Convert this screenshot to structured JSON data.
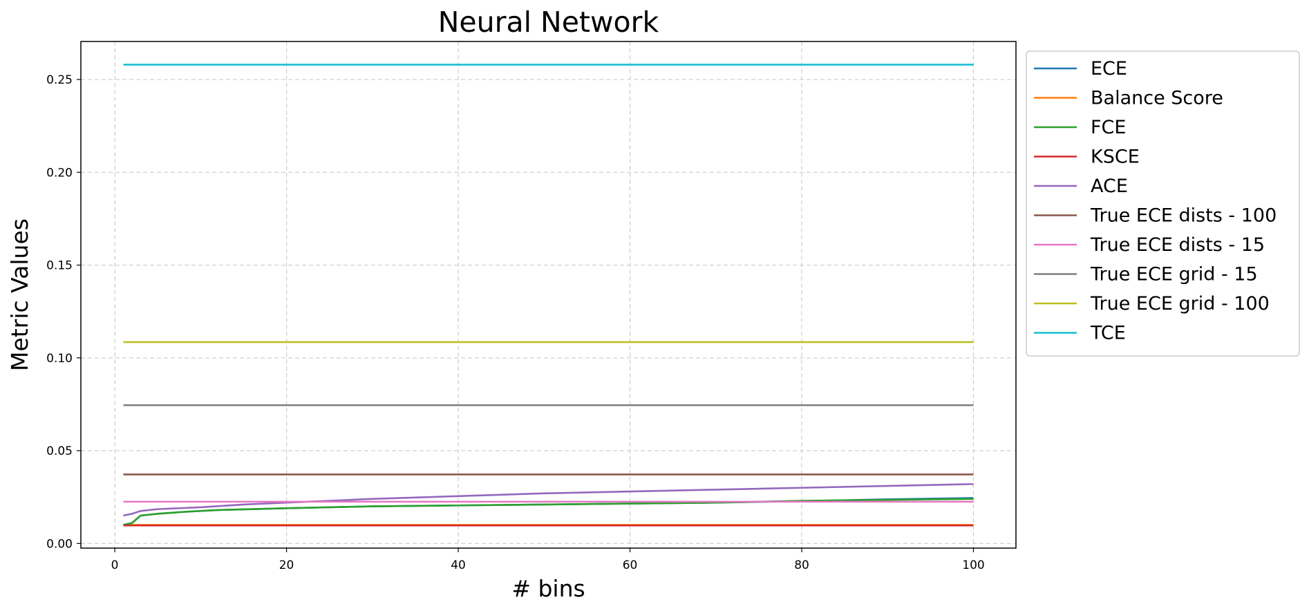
{
  "chart_data": {
    "type": "line",
    "title": "Neural Network",
    "xlabel": "# bins",
    "ylabel": "Metric Values",
    "xlim": [
      -3.95,
      104.95
    ],
    "ylim": [
      -0.0025,
      0.2705
    ],
    "xticks": [
      0,
      20,
      40,
      60,
      80,
      100
    ],
    "xtick_labels": [
      "0",
      "20",
      "40",
      "60",
      "80",
      "100"
    ],
    "yticks": [
      0.0,
      0.05,
      0.1,
      0.15,
      0.2,
      0.25
    ],
    "ytick_labels": [
      "0.00",
      "0.05",
      "0.10",
      "0.15",
      "0.20",
      "0.25"
    ],
    "grid": true,
    "legend_position": "outside-right",
    "series": [
      {
        "name": "ECE",
        "color": "#1f77b4",
        "x": [
          1,
          2,
          3,
          5,
          8,
          12,
          20,
          30,
          40,
          50,
          60,
          70,
          80,
          90,
          100
        ],
        "values": [
          0.01,
          0.011,
          0.015,
          0.016,
          0.017,
          0.018,
          0.019,
          0.02,
          0.0205,
          0.021,
          0.0215,
          0.022,
          0.0228,
          0.0238,
          0.0245
        ]
      },
      {
        "name": "Balance Score",
        "color": "#ff7f0e",
        "x": [
          1,
          100
        ],
        "values": [
          0.01,
          0.01
        ]
      },
      {
        "name": "FCE",
        "color": "#2ca02c",
        "x": [
          1,
          2,
          3,
          5,
          8,
          12,
          20,
          30,
          40,
          50,
          60,
          70,
          80,
          90,
          100
        ],
        "values": [
          0.01,
          0.011,
          0.015,
          0.016,
          0.017,
          0.018,
          0.019,
          0.02,
          0.0205,
          0.021,
          0.0215,
          0.022,
          0.023,
          0.0235,
          0.024
        ]
      },
      {
        "name": "KSCE",
        "color": "#d62728",
        "x": [
          1,
          100
        ],
        "values": [
          0.0097,
          0.0097
        ]
      },
      {
        "name": "ACE",
        "color": "#9467bd",
        "x": [
          1,
          2,
          3,
          5,
          10,
          15,
          20,
          30,
          40,
          50,
          60,
          70,
          80,
          90,
          100
        ],
        "values": [
          0.015,
          0.016,
          0.0175,
          0.0185,
          0.0195,
          0.021,
          0.022,
          0.024,
          0.0255,
          0.027,
          0.028,
          0.029,
          0.03,
          0.031,
          0.032
        ]
      },
      {
        "name": "True ECE dists - 100",
        "color": "#8c564b",
        "x": [
          1,
          100
        ],
        "values": [
          0.0372,
          0.0372
        ]
      },
      {
        "name": "True ECE dists - 15",
        "color": "#e377c2",
        "x": [
          1,
          100
        ],
        "values": [
          0.0225,
          0.0225
        ]
      },
      {
        "name": "True ECE grid - 15",
        "color": "#7f7f7f",
        "x": [
          1,
          100
        ],
        "values": [
          0.0745,
          0.0745
        ]
      },
      {
        "name": "True ECE grid - 100",
        "color": "#bcbd22",
        "x": [
          1,
          100
        ],
        "values": [
          0.1085,
          0.1085
        ]
      },
      {
        "name": "TCE",
        "color": "#17becf",
        "x": [
          1,
          100
        ],
        "values": [
          0.258,
          0.258
        ]
      }
    ]
  }
}
